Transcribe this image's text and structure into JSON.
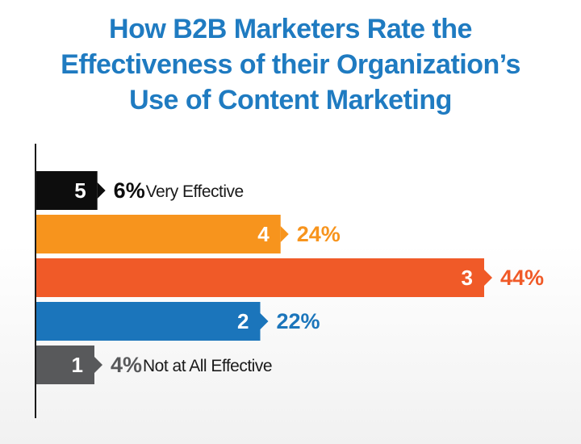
{
  "title_lines": [
    "How B2B Marketers Rate the",
    "Effectiveness of their Organization’s",
    "Use of Content Marketing"
  ],
  "chart_data": {
    "type": "bar",
    "orientation": "horizontal",
    "title": "How B2B Marketers Rate the Effectiveness of their Organization’s Use of Content Marketing",
    "xlim": [
      0,
      44
    ],
    "grid": false,
    "categories": [
      "5",
      "4",
      "3",
      "2",
      "1"
    ],
    "values": [
      6,
      24,
      44,
      22,
      4
    ],
    "value_labels": [
      "6%",
      "24%",
      "44%",
      "22%",
      "4%"
    ],
    "annotations": [
      "Very Effective",
      "",
      "",
      "",
      "Not at All Effective"
    ],
    "colors": [
      "#0d0d0d",
      "#f7941d",
      "#f05a28",
      "#1b75bb",
      "#58595b"
    ],
    "label_colors": [
      "#0d0d0d",
      "#f7941d",
      "#f05a28",
      "#1b75bb",
      "#58595b"
    ]
  }
}
